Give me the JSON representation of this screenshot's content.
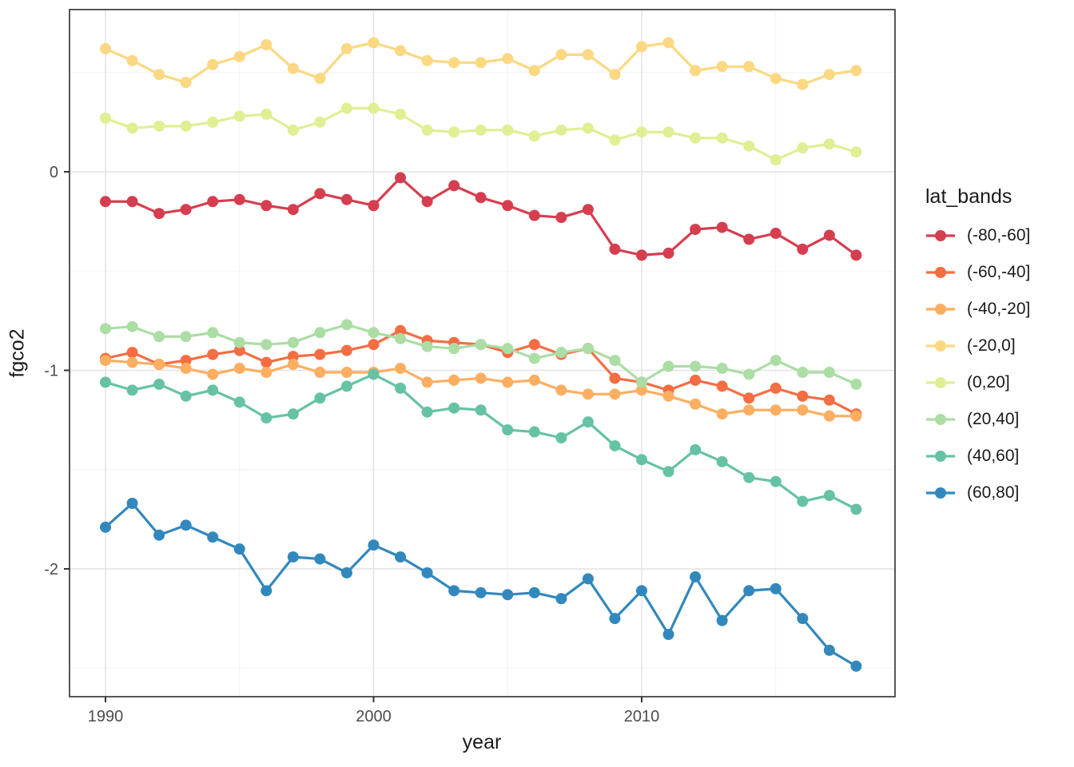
{
  "legend": {
    "title": "lat_bands"
  },
  "chart_data": {
    "type": "line",
    "title": "",
    "xlabel": "year",
    "ylabel": "fgco2",
    "grid": true,
    "legend_position": "right",
    "x": [
      1990,
      1991,
      1992,
      1993,
      1994,
      1995,
      1996,
      1997,
      1998,
      1999,
      2000,
      2001,
      2002,
      2003,
      2004,
      2005,
      2006,
      2007,
      2008,
      2009,
      2010,
      2011,
      2012,
      2013,
      2014,
      2015,
      2016,
      2017,
      2018
    ],
    "x_domain": [
      1988.659,
      2019.448
    ],
    "y_domain": [
      -2.6438,
      0.8169
    ],
    "x_ticks": {
      "major": [
        1990,
        2000,
        2010
      ],
      "minor": [
        1995,
        2005,
        2015
      ],
      "labels": [
        "1990",
        "2000",
        "2010"
      ]
    },
    "y_ticks": {
      "major": [
        0,
        -1,
        -2
      ],
      "minor": [
        0.5,
        -0.5,
        -1.5,
        -2.5
      ],
      "labels": [
        "0",
        "-1",
        "-2"
      ]
    },
    "series": [
      {
        "name": "(-80,-60]",
        "color": "#d53e4f",
        "values": [
          -0.15,
          -0.15,
          -0.21,
          -0.19,
          -0.15,
          -0.14,
          -0.17,
          -0.19,
          -0.11,
          -0.14,
          -0.17,
          -0.03,
          -0.15,
          -0.07,
          -0.13,
          -0.17,
          -0.22,
          -0.23,
          -0.19,
          -0.39,
          -0.42,
          -0.41,
          -0.29,
          -0.28,
          -0.34,
          -0.31,
          -0.39,
          -0.32,
          -0.42
        ]
      },
      {
        "name": "(-60,-40]",
        "color": "#f46d43",
        "values": [
          -0.94,
          -0.91,
          -0.97,
          -0.95,
          -0.92,
          -0.9,
          -0.96,
          -0.93,
          -0.92,
          -0.9,
          -0.87,
          -0.8,
          -0.85,
          -0.86,
          -0.87,
          -0.91,
          -0.87,
          -0.92,
          -0.89,
          -1.04,
          -1.06,
          -1.1,
          -1.05,
          -1.08,
          -1.14,
          -1.09,
          -1.13,
          -1.15,
          -1.22
        ]
      },
      {
        "name": "(-40,-20]",
        "color": "#fdae61",
        "values": [
          -0.95,
          -0.96,
          -0.97,
          -0.99,
          -1.02,
          -0.99,
          -1.01,
          -0.97,
          -1.01,
          -1.01,
          -1.01,
          -0.99,
          -1.06,
          -1.05,
          -1.04,
          -1.06,
          -1.05,
          -1.1,
          -1.12,
          -1.12,
          -1.1,
          -1.13,
          -1.17,
          -1.22,
          -1.2,
          -1.2,
          -1.2,
          -1.23,
          -1.23
        ]
      },
      {
        "name": "(-20,0]",
        "color": "#fbd881",
        "values": [
          0.62,
          0.56,
          0.49,
          0.45,
          0.54,
          0.58,
          0.64,
          0.52,
          0.47,
          0.62,
          0.65,
          0.61,
          0.56,
          0.55,
          0.55,
          0.57,
          0.51,
          0.59,
          0.59,
          0.49,
          0.63,
          0.65,
          0.51,
          0.53,
          0.53,
          0.47,
          0.44,
          0.49,
          0.51
        ]
      },
      {
        "name": "(0,20]",
        "color": "#dfef93",
        "values": [
          0.27,
          0.22,
          0.23,
          0.23,
          0.25,
          0.28,
          0.29,
          0.21,
          0.25,
          0.32,
          0.32,
          0.29,
          0.21,
          0.2,
          0.21,
          0.21,
          0.18,
          0.21,
          0.22,
          0.16,
          0.2,
          0.2,
          0.17,
          0.17,
          0.13,
          0.06,
          0.12,
          0.14,
          0.1
        ]
      },
      {
        "name": "(20,40]",
        "color": "#abdda4",
        "values": [
          -0.79,
          -0.78,
          -0.83,
          -0.83,
          -0.81,
          -0.86,
          -0.87,
          -0.86,
          -0.81,
          -0.77,
          -0.81,
          -0.84,
          -0.88,
          -0.89,
          -0.87,
          -0.89,
          -0.94,
          -0.91,
          -0.89,
          -0.95,
          -1.06,
          -0.98,
          -0.98,
          -0.99,
          -1.02,
          -0.95,
          -1.01,
          -1.01,
          -1.07
        ]
      },
      {
        "name": "(40,60]",
        "color": "#66c2a5",
        "values": [
          -1.06,
          -1.1,
          -1.07,
          -1.13,
          -1.1,
          -1.16,
          -1.24,
          -1.22,
          -1.14,
          -1.08,
          -1.02,
          -1.09,
          -1.21,
          -1.19,
          -1.2,
          -1.3,
          -1.31,
          -1.34,
          -1.26,
          -1.38,
          -1.45,
          -1.51,
          -1.4,
          -1.46,
          -1.54,
          -1.56,
          -1.66,
          -1.63,
          -1.7
        ]
      },
      {
        "name": "(60,80]",
        "color": "#3288bd",
        "values": [
          -1.79,
          -1.67,
          -1.83,
          -1.78,
          -1.84,
          -1.9,
          -2.11,
          -1.94,
          -1.95,
          -2.02,
          -1.88,
          -1.94,
          -2.02,
          -2.11,
          -2.12,
          -2.13,
          -2.12,
          -2.15,
          -2.05,
          -2.25,
          -2.11,
          -2.33,
          -2.04,
          -2.26,
          -2.11,
          -2.1,
          -2.25,
          -2.41,
          -2.49
        ]
      }
    ],
    "style": {
      "panel_border": "#2e2e2e",
      "grid_major": "#e4e4e4",
      "grid_minor": "#f2f2f2",
      "tick_color": "#333333"
    }
  }
}
